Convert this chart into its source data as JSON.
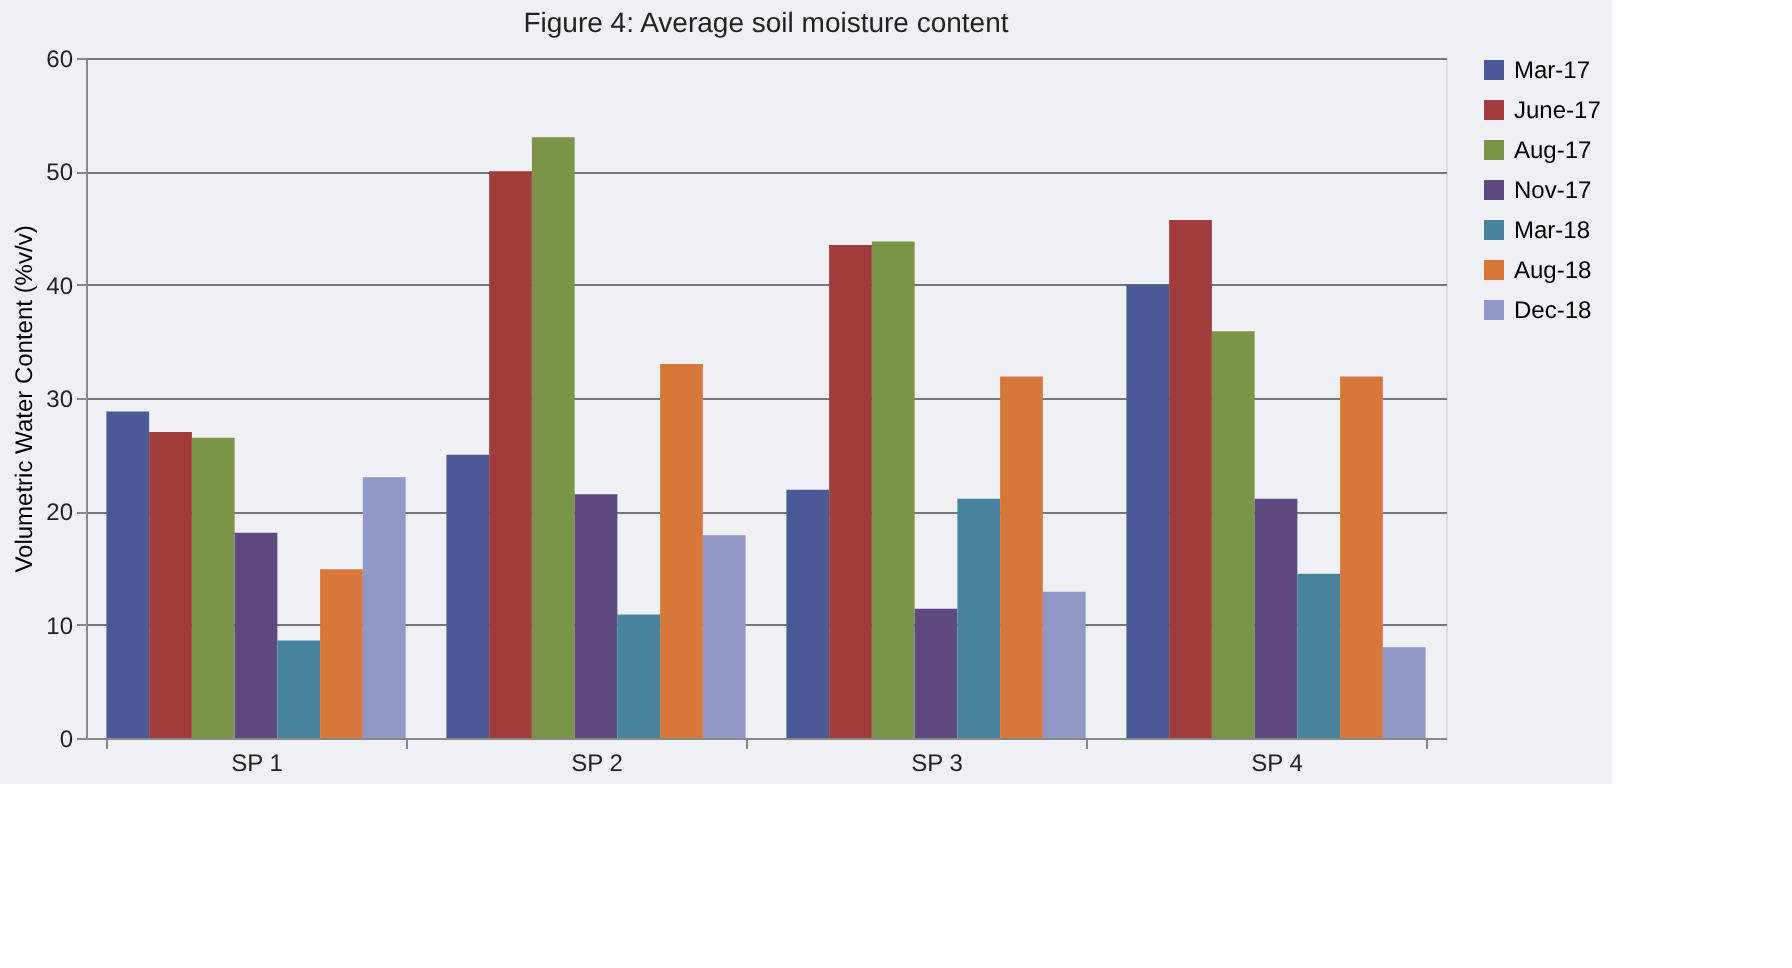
{
  "chart_data": {
    "type": "bar",
    "title": "Figure 4: Average soil moisture content",
    "ylabel": "Volumetric Water Content (%v/v)",
    "categories": [
      "SP 1",
      "SP 2",
      "SP 3",
      "SP 4"
    ],
    "series": [
      {
        "name": "Mar-17",
        "color": "#4a5a94",
        "values": [
          28.8,
          25.0,
          21.9,
          40.0
        ]
      },
      {
        "name": "June-17",
        "color": "#a03c3a",
        "values": [
          27.0,
          50.0,
          43.5,
          45.7
        ]
      },
      {
        "name": "Aug-17",
        "color": "#7a9448",
        "values": [
          26.5,
          53.0,
          43.8,
          35.9
        ]
      },
      {
        "name": "Nov-17",
        "color": "#5e4a80",
        "values": [
          18.1,
          21.5,
          11.4,
          21.1
        ]
      },
      {
        "name": "Mar-18",
        "color": "#46849e",
        "values": [
          8.6,
          10.9,
          21.1,
          14.5
        ]
      },
      {
        "name": "Aug-18",
        "color": "#d8773a",
        "values": [
          14.9,
          33.0,
          31.9,
          31.9
        ]
      },
      {
        "name": "Dec-18",
        "color": "#9098c8",
        "values": [
          23.0,
          17.9,
          12.9,
          8.0
        ]
      }
    ],
    "ylim": [
      0,
      60
    ],
    "yticks": [
      0,
      10,
      20,
      30,
      40,
      50,
      60
    ],
    "grid": "y",
    "legend": "right"
  }
}
